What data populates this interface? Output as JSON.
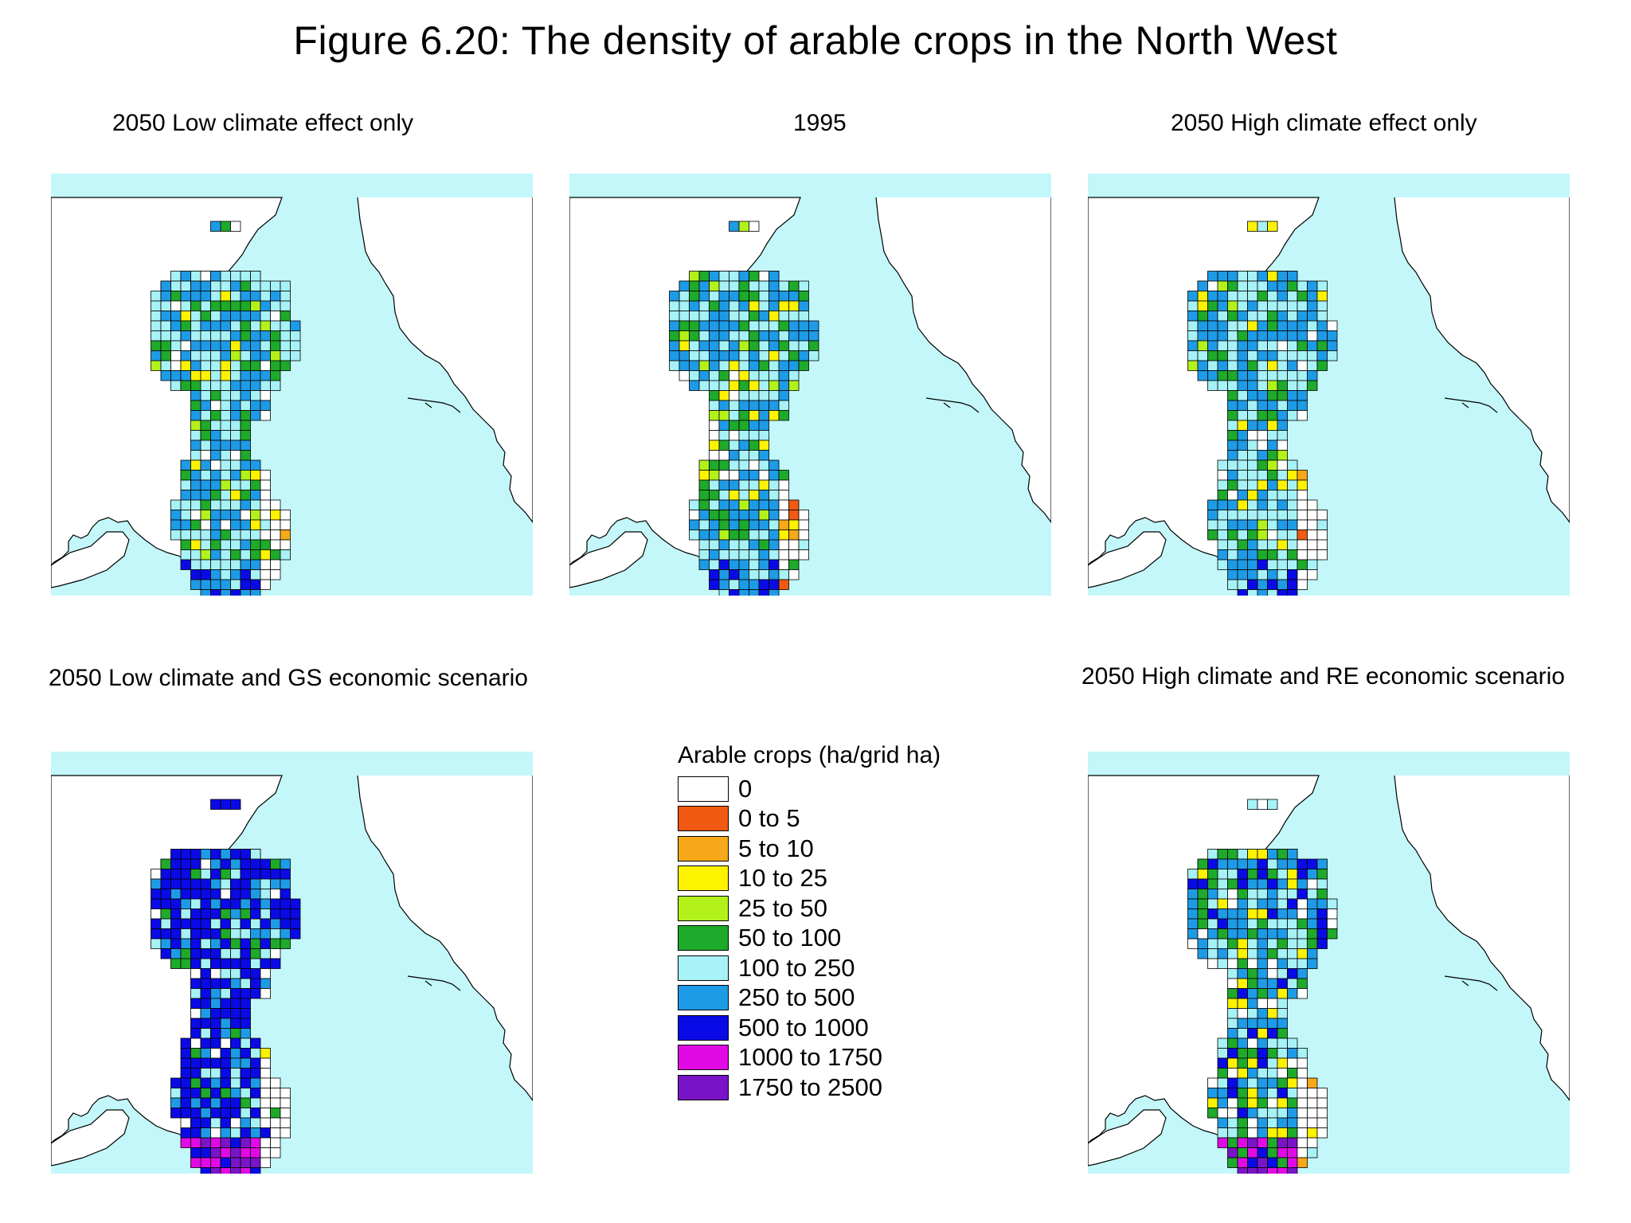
{
  "figure": {
    "title": "Figure 6.20: The density of arable crops in the North West"
  },
  "colors": {
    "sea": "#c3f7f9",
    "land": "#ffffff",
    "coast": "#000000"
  },
  "maps": [
    {
      "title": "2050 Low climate effect only",
      "scenario": "low"
    },
    {
      "title": "1995",
      "scenario": "base"
    },
    {
      "title": "2050 High climate effect only",
      "scenario": "high"
    },
    {
      "title": "2050 Low climate and GS economic scenario",
      "scenario": "lowgs"
    },
    {
      "title": "2050 High climate and RE economic scenario",
      "scenario": "highre"
    }
  ],
  "legend": {
    "title": "Arable crops (ha/grid ha)",
    "items": [
      {
        "label": "0",
        "color": "#ffffff"
      },
      {
        "label": "0 to 5",
        "color": "#f05a12"
      },
      {
        "label": "5 to 10",
        "color": "#f7a91a"
      },
      {
        "label": "10 to 25",
        "color": "#fdf200"
      },
      {
        "label": "25 to 50",
        "color": "#b2f21a"
      },
      {
        "label": "50 to 100",
        "color": "#1eaa2a"
      },
      {
        "label": "100 to 250",
        "color": "#a6f2f7"
      },
      {
        "label": "250 to 500",
        "color": "#1e9be6"
      },
      {
        "label": "500 to 1000",
        "color": "#0a0ae6"
      },
      {
        "label": "1000 to 1750",
        "color": "#e10ae6"
      },
      {
        "label": "1750 to 2500",
        "color": "#7a14c8"
      }
    ]
  }
}
